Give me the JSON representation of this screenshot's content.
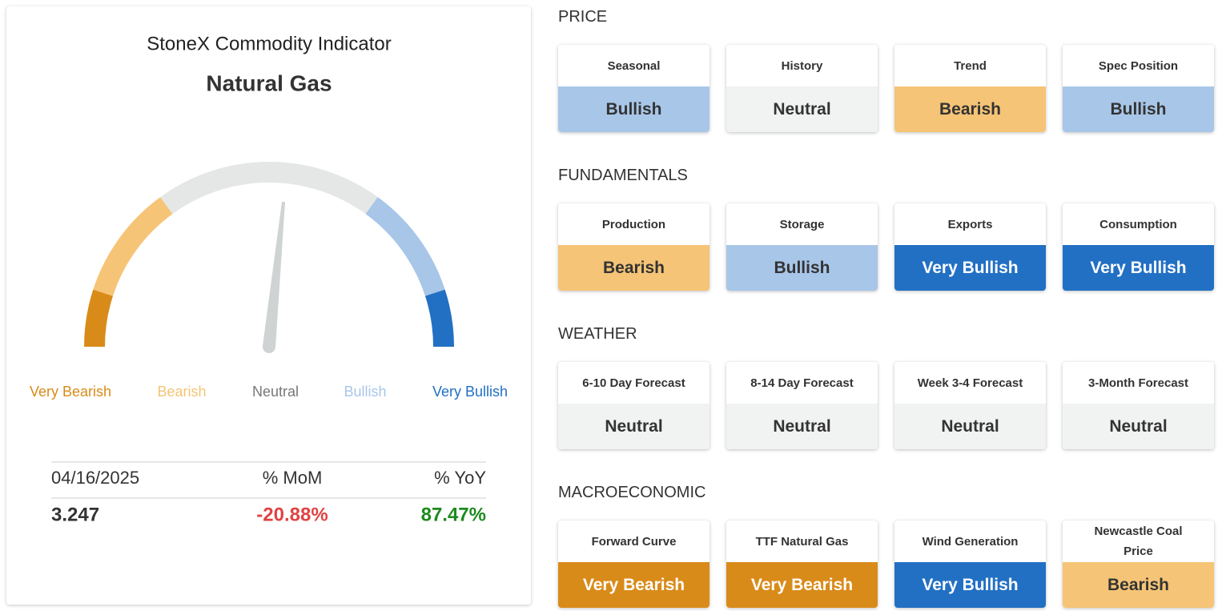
{
  "gauge": {
    "title": "StoneX Commodity Indicator",
    "commodity": "Natural Gas",
    "levels": [
      {
        "label": "Very Bearish",
        "color": "#d98b19",
        "text_color": "#d98b19"
      },
      {
        "label": "Bearish",
        "color": "#f5c476",
        "text_color": "#f5c476"
      },
      {
        "label": "Neutral",
        "color": "#e5e7e6",
        "text_color": "#777777"
      },
      {
        "label": "Bullish",
        "color": "#a8c6e8",
        "text_color": "#a8c6e8"
      },
      {
        "label": "Very Bullish",
        "color": "#2270c4",
        "text_color": "#2270c4"
      }
    ]
  },
  "summary": {
    "header": [
      "04/16/2025",
      "% MoM",
      "% YoY"
    ],
    "values": [
      "3.247",
      "-20.88%",
      "87.47%"
    ],
    "value_colors": [
      "#333333",
      "#e04343",
      "#1e8a1e"
    ]
  },
  "sections": [
    {
      "title": "PRICE",
      "cards": [
        {
          "label": "Seasonal",
          "signal": "Bullish"
        },
        {
          "label": "History",
          "signal": "Neutral"
        },
        {
          "label": "Trend",
          "signal": "Bearish"
        },
        {
          "label": "Spec Position",
          "signal": "Bullish"
        }
      ]
    },
    {
      "title": "FUNDAMENTALS",
      "cards": [
        {
          "label": "Production",
          "signal": "Bearish"
        },
        {
          "label": "Storage",
          "signal": "Bullish"
        },
        {
          "label": "Exports",
          "signal": "Very Bullish"
        },
        {
          "label": "Consumption",
          "signal": "Very Bullish"
        }
      ]
    },
    {
      "title": "WEATHER",
      "cards": [
        {
          "label": "6-10 Day Forecast",
          "signal": "Neutral"
        },
        {
          "label": "8-14 Day Forecast",
          "signal": "Neutral"
        },
        {
          "label": "Week 3-4 Forecast",
          "signal": "Neutral"
        },
        {
          "label": "3-Month Forecast",
          "signal": "Neutral"
        }
      ]
    },
    {
      "title": "MACROECONOMIC",
      "cards": [
        {
          "label": "Forward Curve",
          "signal": "Very Bearish"
        },
        {
          "label": "TTF Natural Gas",
          "signal": "Very Bearish"
        },
        {
          "label": "Wind Generation",
          "signal": "Very Bullish"
        },
        {
          "label": "Newcastle Coal Price",
          "signal": "Bearish"
        }
      ]
    }
  ]
}
